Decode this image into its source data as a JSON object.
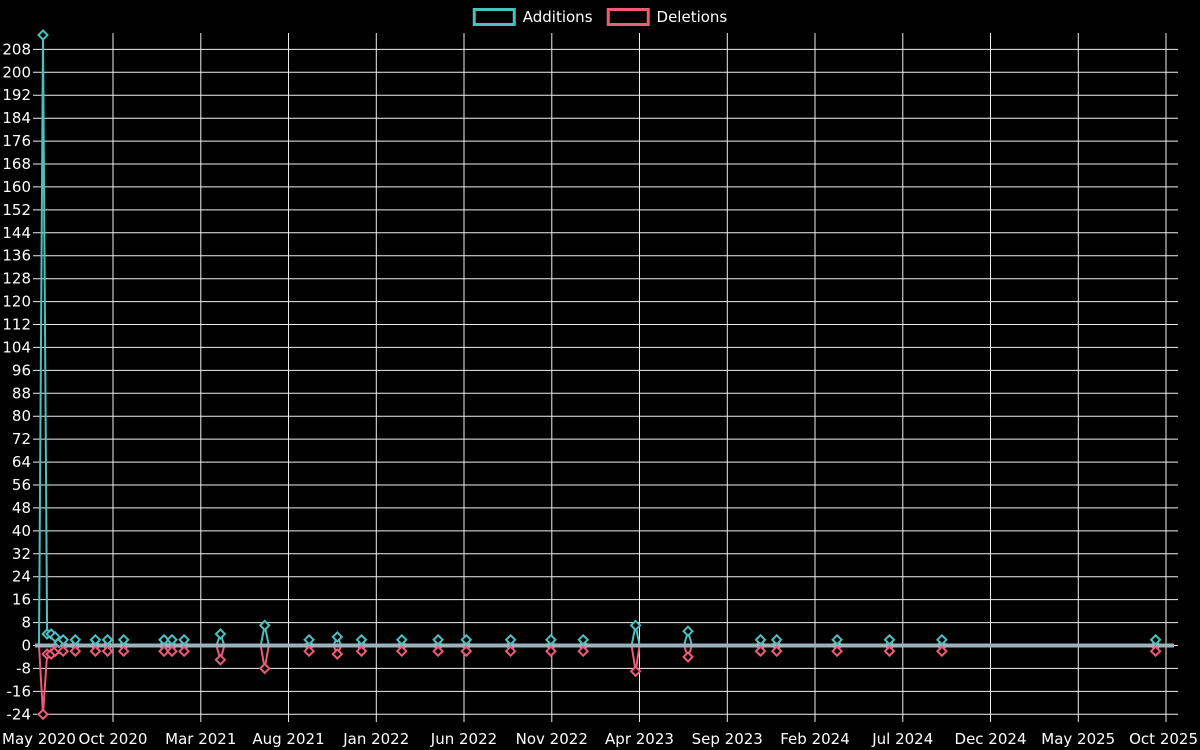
{
  "legend": {
    "items": [
      {
        "label": "Additions",
        "color": "#4cc0c0"
      },
      {
        "label": "Deletions",
        "color": "#ef5a78"
      }
    ]
  },
  "colors": {
    "background": "#000000",
    "grid": "#efefef",
    "text": "#ffffff",
    "additions": "#4cc0c0",
    "deletions": "#ef5a78",
    "zero_line": "#9bb2bd"
  },
  "chart_data": {
    "type": "line",
    "title": "",
    "legend_position": "top",
    "grid": true,
    "xlabel": "",
    "ylabel": "",
    "ylim": [
      -24,
      208
    ],
    "y_step": 8,
    "y_tick_labels": [
      "208",
      "200",
      "192",
      "184",
      "176",
      "168",
      "160",
      "152",
      "144",
      "136",
      "128",
      "120",
      "112",
      "104",
      "96",
      "88",
      "80",
      "72",
      "64",
      "56",
      "48",
      "40",
      "32",
      "24",
      "16",
      "8",
      "0",
      "-8",
      "-16",
      "-24"
    ],
    "x_tick_labels": [
      "May 2020",
      "Oct 2020",
      "Mar 2021",
      "Aug 2021",
      "Jan 2022",
      "Jun 2022",
      "Nov 2022",
      "Apr 2023",
      "Sep 2023",
      "Feb 2024",
      "Jul 2024",
      "Dec 2024",
      "May 2025",
      "Oct 2025"
    ],
    "week_start": "2020-05-24",
    "weeks_shown": 282,
    "baseline_value": 0,
    "series": [
      {
        "name": "Additions",
        "color": "#4cc0c0"
      },
      {
        "name": "Deletions",
        "color": "#ef5a78"
      }
    ],
    "nonzero_weeks": [
      {
        "date": "2020-05-31",
        "additions": 213,
        "deletions": -24
      },
      {
        "date": "2020-06-07",
        "additions": 4,
        "deletions": -3
      },
      {
        "date": "2020-06-14",
        "additions": 4,
        "deletions": -3
      },
      {
        "date": "2020-06-21",
        "additions": 3,
        "deletions": -2
      },
      {
        "date": "2020-06-28",
        "additions": 1,
        "deletions": -1
      },
      {
        "date": "2020-07-05",
        "additions": 2,
        "deletions": -2
      },
      {
        "date": "2020-07-26",
        "additions": 2,
        "deletions": -2
      },
      {
        "date": "2020-08-30",
        "additions": 2,
        "deletions": -2
      },
      {
        "date": "2020-09-20",
        "additions": 2,
        "deletions": -2
      },
      {
        "date": "2020-10-18",
        "additions": 2,
        "deletions": -2
      },
      {
        "date": "2020-12-27",
        "additions": 2,
        "deletions": -2
      },
      {
        "date": "2021-01-10",
        "additions": 2,
        "deletions": -2
      },
      {
        "date": "2021-01-31",
        "additions": 2,
        "deletions": -2
      },
      {
        "date": "2021-04-04",
        "additions": 4,
        "deletions": -5
      },
      {
        "date": "2021-06-20",
        "additions": 7,
        "deletions": -8
      },
      {
        "date": "2021-09-05",
        "additions": 2,
        "deletions": -2
      },
      {
        "date": "2021-10-24",
        "additions": 3,
        "deletions": -3
      },
      {
        "date": "2021-12-05",
        "additions": 2,
        "deletions": -2
      },
      {
        "date": "2022-02-13",
        "additions": 2,
        "deletions": -2
      },
      {
        "date": "2022-04-17",
        "additions": 2,
        "deletions": -2
      },
      {
        "date": "2022-06-05",
        "additions": 2,
        "deletions": -2
      },
      {
        "date": "2022-08-21",
        "additions": 2,
        "deletions": -2
      },
      {
        "date": "2022-10-30",
        "additions": 2,
        "deletions": -2
      },
      {
        "date": "2022-12-25",
        "additions": 2,
        "deletions": -2
      },
      {
        "date": "2023-03-26",
        "additions": 7,
        "deletions": -9
      },
      {
        "date": "2023-06-25",
        "additions": 5,
        "deletions": -4
      },
      {
        "date": "2023-10-29",
        "additions": 2,
        "deletions": -2
      },
      {
        "date": "2023-11-26",
        "additions": 2,
        "deletions": -2
      },
      {
        "date": "2024-03-10",
        "additions": 2,
        "deletions": -2
      },
      {
        "date": "2024-06-09",
        "additions": 2,
        "deletions": -2
      },
      {
        "date": "2024-09-08",
        "additions": 2,
        "deletions": -2
      },
      {
        "date": "2025-09-14",
        "additions": 2,
        "deletions": -2
      }
    ]
  }
}
